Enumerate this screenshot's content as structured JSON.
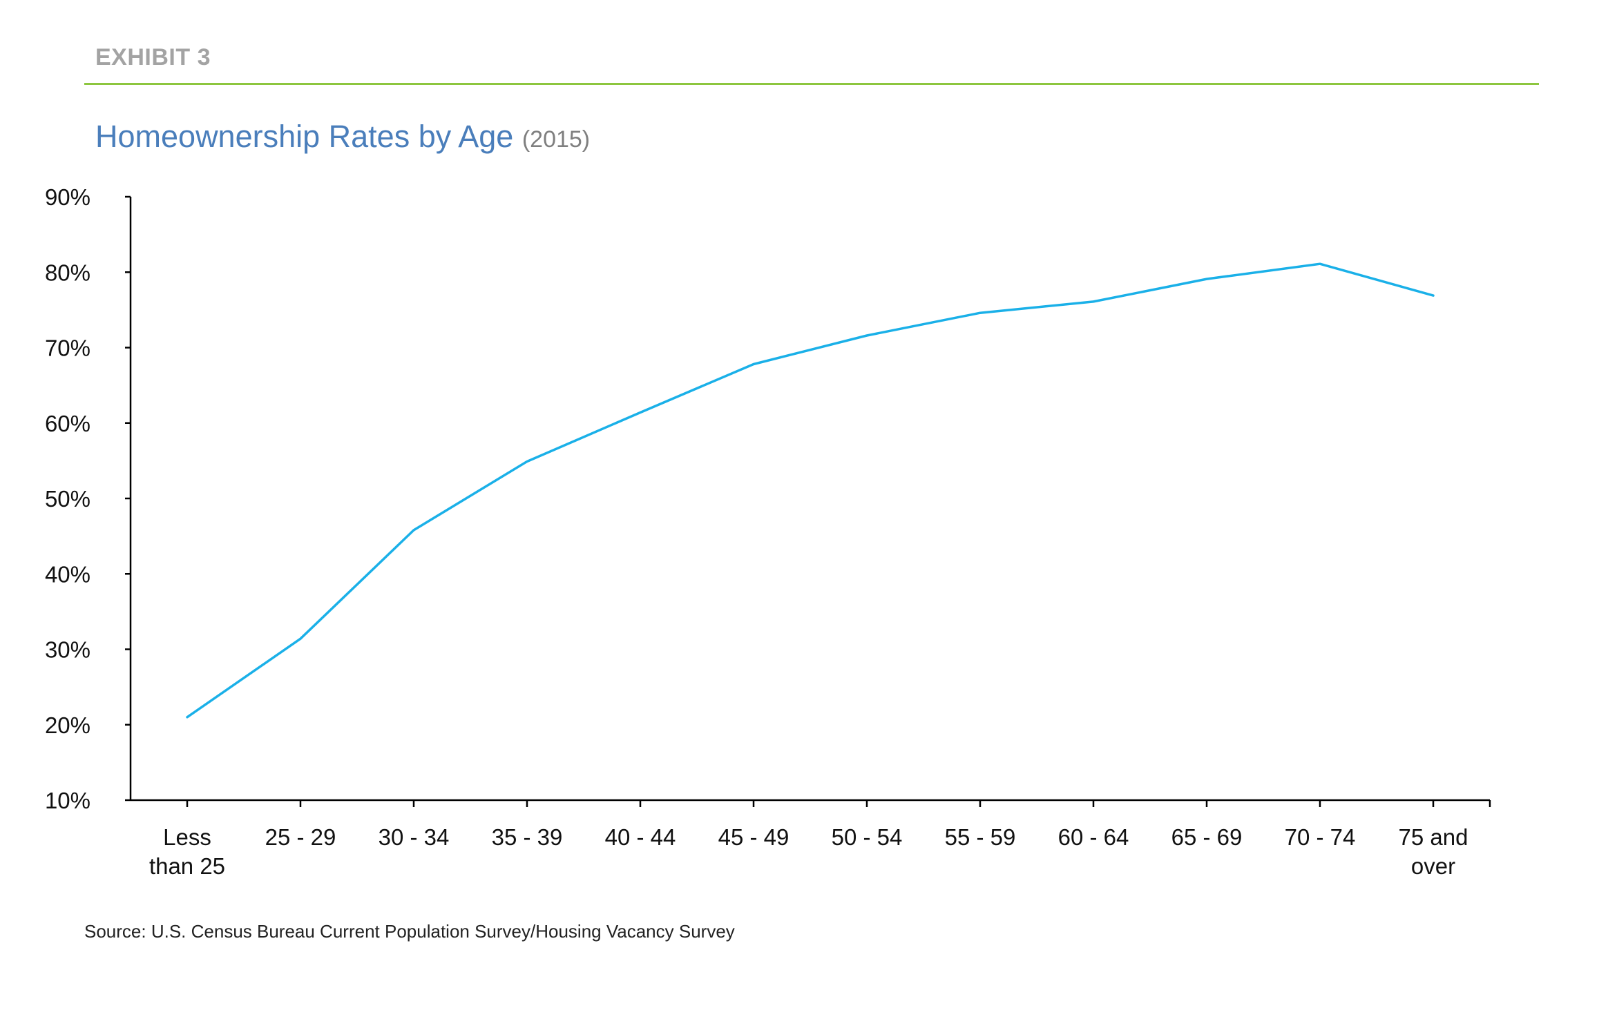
{
  "header": {
    "exhibit_label": "EXHIBIT 3",
    "title": "Homeownership Rates by Age",
    "title_suffix": "(2015)"
  },
  "footer": {
    "source": "Source: U.S. Census Bureau Current Population Survey/Housing Vacancy Survey"
  },
  "colors": {
    "line": "#1ab0e8",
    "title": "#4a7ebb",
    "rule": "#8dc63f",
    "exhibit": "#a3a3a3"
  },
  "chart_data": {
    "type": "line",
    "categories": [
      [
        "Less",
        "than 25"
      ],
      [
        "25 - 29"
      ],
      [
        "30 - 34"
      ],
      [
        "35 - 39"
      ],
      [
        "40 - 44"
      ],
      [
        "45 - 49"
      ],
      [
        "50 - 54"
      ],
      [
        "55 - 59"
      ],
      [
        "60 - 64"
      ],
      [
        "65 - 69"
      ],
      [
        "70 - 74"
      ],
      [
        "75 and",
        "over"
      ]
    ],
    "values": [
      21.0,
      31.4,
      45.8,
      54.9,
      61.4,
      67.8,
      71.6,
      74.6,
      76.1,
      79.1,
      81.1,
      76.9
    ],
    "y_ticks": [
      "10%",
      "20%",
      "30%",
      "40%",
      "50%",
      "60%",
      "70%",
      "80%",
      "90%"
    ],
    "ylim": [
      10,
      90
    ],
    "grid": false,
    "legend": "none"
  }
}
